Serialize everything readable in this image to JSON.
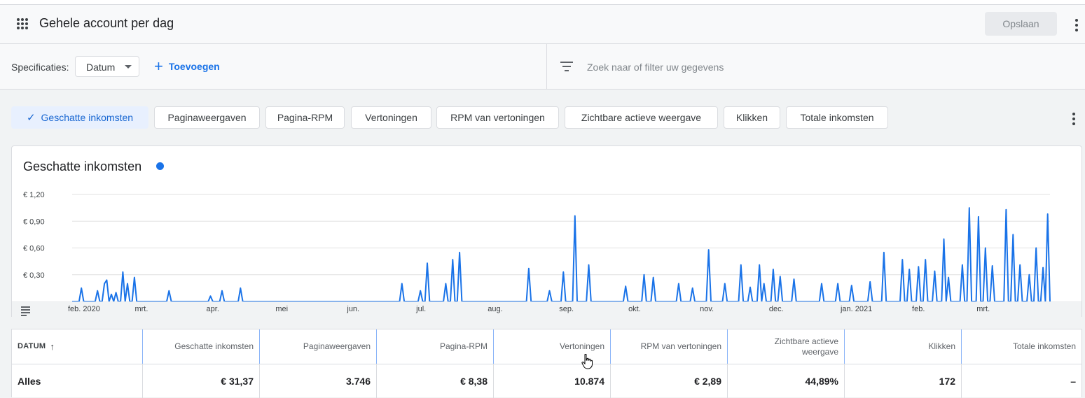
{
  "header": {
    "title": "Gehele account per dag",
    "save_label": "Opslaan"
  },
  "filters": {
    "spec_label": "Specificaties:",
    "dimension_value": "Datum",
    "add_label": "Toevoegen",
    "search_placeholder": "Zoek naar of filter uw gegevens"
  },
  "metrics_chips": [
    {
      "label": "Geschatte inkomsten",
      "selected": true
    },
    {
      "label": "Paginaweergaven",
      "selected": false
    },
    {
      "label": "Pagina-RPM",
      "selected": false
    },
    {
      "label": "Vertoningen",
      "selected": false
    },
    {
      "label": "RPM van vertoningen",
      "selected": false
    },
    {
      "label": "Zichtbare actieve weergave",
      "selected": false
    },
    {
      "label": "Klikken",
      "selected": false
    },
    {
      "label": "Totale inkomsten",
      "selected": false
    }
  ],
  "chart_card": {
    "title": "Geschatte inkomsten",
    "series_color": "#1a73e8"
  },
  "chart_data": {
    "type": "line",
    "title": "Geschatte inkomsten",
    "ylim": [
      0,
      1.2
    ],
    "y_ticks": [
      "€ 0,30",
      "€ 0,60",
      "€ 0,90",
      "€ 1,20"
    ],
    "x_month_labels": [
      "feb. 2020",
      "mrt.",
      "apr.",
      "mei",
      "jun.",
      "jul.",
      "aug.",
      "sep.",
      "okt.",
      "nov.",
      "dec.",
      "jan. 2021",
      "feb.",
      "mrt."
    ],
    "x_start": "2020-02-01",
    "x_end": "2021-03-31",
    "series": [
      {
        "values": [
          [
            "2020-02-05",
            0.15
          ],
          [
            "2020-02-12",
            0.12
          ],
          [
            "2020-02-15",
            0.2
          ],
          [
            "2020-02-16",
            0.24
          ],
          [
            "2020-02-18",
            0.08
          ],
          [
            "2020-02-20",
            0.1
          ],
          [
            "2020-02-23",
            0.33
          ],
          [
            "2020-02-25",
            0.2
          ],
          [
            "2020-02-28",
            0.27
          ],
          [
            "2020-03-14",
            0.12
          ],
          [
            "2020-04-01",
            0.06
          ],
          [
            "2020-04-06",
            0.12
          ],
          [
            "2020-04-14",
            0.15
          ],
          [
            "2020-06-23",
            0.2
          ],
          [
            "2020-07-01",
            0.12
          ],
          [
            "2020-07-04",
            0.43
          ],
          [
            "2020-07-12",
            0.2
          ],
          [
            "2020-07-15",
            0.47
          ],
          [
            "2020-07-18",
            0.55
          ],
          [
            "2020-08-17",
            0.37
          ],
          [
            "2020-08-26",
            0.12
          ],
          [
            "2020-09-01",
            0.33
          ],
          [
            "2020-09-06",
            0.96
          ],
          [
            "2020-09-12",
            0.41
          ],
          [
            "2020-09-28",
            0.17
          ],
          [
            "2020-10-06",
            0.3
          ],
          [
            "2020-10-10",
            0.27
          ],
          [
            "2020-10-21",
            0.2
          ],
          [
            "2020-10-27",
            0.15
          ],
          [
            "2020-11-03",
            0.58
          ],
          [
            "2020-11-10",
            0.2
          ],
          [
            "2020-11-17",
            0.41
          ],
          [
            "2020-11-21",
            0.16
          ],
          [
            "2020-11-25",
            0.41
          ],
          [
            "2020-11-27",
            0.2
          ],
          [
            "2020-12-01",
            0.36
          ],
          [
            "2020-12-04",
            0.28
          ],
          [
            "2020-12-10",
            0.25
          ],
          [
            "2020-12-22",
            0.2
          ],
          [
            "2020-12-29",
            0.2
          ],
          [
            "2021-01-04",
            0.18
          ],
          [
            "2021-01-12",
            0.22
          ],
          [
            "2021-01-18",
            0.55
          ],
          [
            "2021-01-26",
            0.47
          ],
          [
            "2021-01-29",
            0.36
          ],
          [
            "2021-02-02",
            0.39
          ],
          [
            "2021-02-05",
            0.47
          ],
          [
            "2021-02-09",
            0.34
          ],
          [
            "2021-02-13",
            0.7
          ],
          [
            "2021-02-15",
            0.27
          ],
          [
            "2021-02-21",
            0.41
          ],
          [
            "2021-02-24",
            1.05
          ],
          [
            "2021-02-28",
            0.95
          ],
          [
            "2021-03-03",
            0.6
          ],
          [
            "2021-03-06",
            0.4
          ],
          [
            "2021-03-12",
            1.03
          ],
          [
            "2021-03-15",
            0.75
          ],
          [
            "2021-03-18",
            0.41
          ],
          [
            "2021-03-22",
            0.3
          ],
          [
            "2021-03-25",
            0.6
          ],
          [
            "2021-03-28",
            0.38
          ],
          [
            "2021-03-30",
            0.98
          ]
        ]
      }
    ]
  },
  "table": {
    "headers": [
      "DATUM",
      "Geschatte inkomsten",
      "Paginaweergaven",
      "Pagina-RPM",
      "Vertoningen",
      "RPM van vertoningen",
      "Zichtbare actieve weergave",
      "Klikken",
      "Totale inkomsten"
    ],
    "sort_indicator": "↑",
    "totals_row": [
      "Alles",
      "€ 31,37",
      "3.746",
      "€ 8,38",
      "10.874",
      "€ 2,89",
      "44,89%",
      "172",
      "–"
    ]
  }
}
